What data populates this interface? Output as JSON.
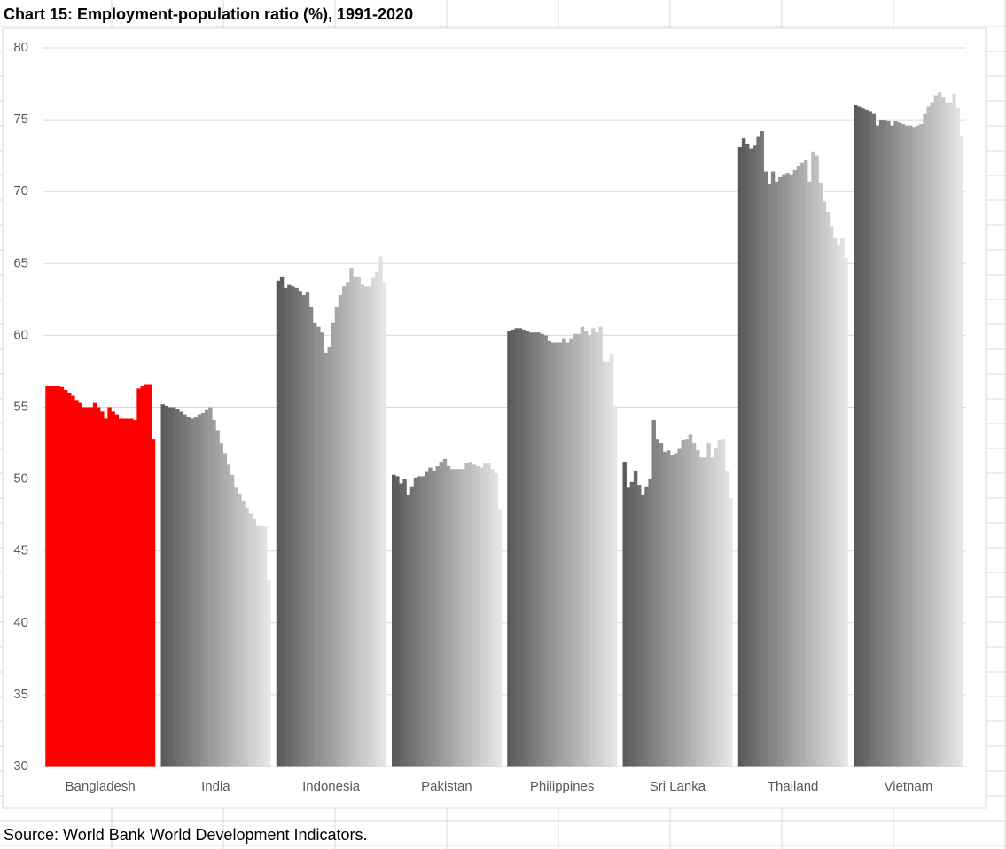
{
  "chart_data": {
    "type": "bar",
    "title": "Chart 15: Employment-population ratio (%), 1991-2020",
    "source": "Source: World Bank World Development Indicators.",
    "categories": [
      "Bangladesh",
      "India",
      "Indonesia",
      "Pakistan",
      "Philippines",
      "Sri Lanka",
      "Thailand",
      "Vietnam"
    ],
    "values": [
      [
        56.5,
        56.5,
        56.5,
        56.5,
        56.4,
        56.2,
        56.0,
        55.8,
        55.5,
        55.3,
        55.0,
        55.0,
        55.0,
        55.3,
        55.0,
        54.7,
        54.2,
        55.0,
        54.7,
        54.5,
        54.2,
        54.2,
        54.2,
        54.2,
        54.1,
        56.3,
        56.5,
        56.6,
        56.6,
        52.8
      ],
      [
        55.2,
        55.1,
        55.0,
        55.0,
        54.9,
        54.7,
        54.5,
        54.3,
        54.2,
        54.3,
        54.5,
        54.6,
        54.8,
        55.0,
        54.1,
        53.4,
        52.5,
        51.8,
        51.0,
        50.3,
        49.4,
        49.0,
        48.5,
        48.0,
        47.6,
        47.2,
        46.8,
        46.7,
        46.7,
        43.0
      ],
      [
        63.8,
        64.1,
        63.3,
        63.5,
        63.4,
        63.3,
        63.1,
        62.8,
        63.0,
        62.0,
        60.9,
        60.6,
        60.2,
        58.8,
        59.2,
        60.9,
        62.0,
        62.8,
        63.4,
        63.7,
        64.7,
        64.1,
        64.1,
        63.5,
        63.4,
        63.4,
        64.0,
        64.4,
        65.5,
        63.7
      ],
      [
        50.3,
        50.2,
        49.7,
        50.0,
        48.9,
        49.5,
        50.1,
        50.2,
        50.2,
        50.5,
        50.8,
        50.6,
        50.9,
        51.2,
        51.4,
        50.9,
        50.7,
        50.7,
        50.7,
        50.7,
        51.1,
        51.2,
        51.0,
        50.9,
        50.8,
        51.1,
        51.1,
        50.7,
        50.4,
        47.9
      ],
      [
        60.3,
        60.4,
        60.5,
        60.5,
        60.4,
        60.3,
        60.2,
        60.2,
        60.2,
        60.1,
        60.0,
        59.6,
        59.5,
        59.5,
        59.5,
        59.8,
        59.5,
        59.8,
        60.1,
        60.1,
        60.6,
        60.3,
        60.0,
        60.5,
        60.2,
        60.6,
        58.2,
        58.2,
        58.7,
        55.1
      ],
      [
        51.2,
        49.4,
        49.8,
        50.6,
        49.6,
        48.9,
        49.5,
        50.0,
        54.1,
        52.8,
        52.5,
        51.9,
        52.0,
        51.7,
        51.8,
        52.1,
        52.7,
        52.8,
        53.1,
        52.5,
        52.0,
        51.5,
        51.5,
        52.5,
        51.5,
        52.2,
        52.7,
        52.8,
        50.6,
        48.7
      ],
      [
        73.1,
        73.7,
        73.3,
        73.0,
        73.2,
        73.8,
        74.2,
        71.4,
        70.5,
        71.4,
        70.7,
        71.0,
        71.2,
        71.3,
        71.2,
        71.5,
        71.8,
        72.0,
        72.2,
        70.7,
        72.8,
        72.5,
        70.6,
        69.3,
        68.6,
        67.6,
        66.8,
        66.3,
        66.8,
        65.4
      ],
      [
        76.0,
        75.9,
        75.8,
        75.7,
        75.6,
        75.4,
        74.6,
        75.0,
        75.0,
        74.9,
        74.6,
        74.9,
        74.8,
        74.7,
        74.6,
        74.6,
        74.5,
        74.6,
        74.7,
        75.4,
        75.9,
        76.2,
        76.7,
        76.9,
        76.6,
        76.2,
        76.2,
        76.8,
        75.8,
        73.9
      ]
    ],
    "bar_colors": [
      "#5a5a5a",
      "#5f5f5f",
      "#646464",
      "#686868",
      "#6d6d6d",
      "#727272",
      "#777777",
      "#7c7c7c",
      "#818181",
      "#858585",
      "#8a8a8a",
      "#8f8f8f",
      "#949494",
      "#999999",
      "#9e9e9e",
      "#a2a2a2",
      "#a7a7a7",
      "#acacac",
      "#b1b1b1",
      "#b6b6b6",
      "#bbbbbb",
      "#bfbfbf",
      "#c4c4c4",
      "#c9c9c9",
      "#cecece",
      "#d2d2d2",
      "#d7d7d7",
      "#dcdcdc",
      "#e1e1e1",
      "#e6e6e6"
    ],
    "highlight": {
      "category": "Bangladesh",
      "color": "#ff0000"
    },
    "ylim": [
      30,
      80
    ],
    "yticks": [
      30,
      35,
      40,
      45,
      50,
      55,
      60,
      65,
      70,
      75,
      80
    ],
    "grid": true
  }
}
